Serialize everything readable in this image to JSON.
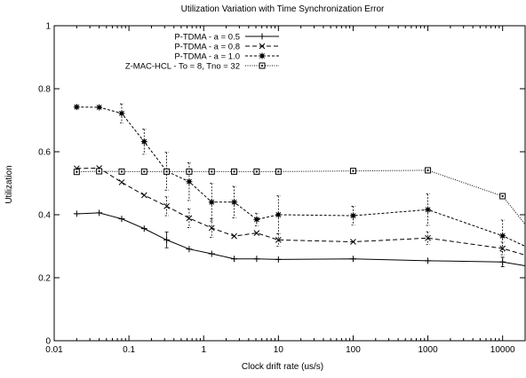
{
  "chart_data": {
    "type": "line",
    "title": "Utilization Variation with Time Synchronization Error",
    "xlabel": "Clock drift rate (us/s)",
    "ylabel": "Utilization",
    "xscale": "log",
    "xlim": [
      0.01,
      20000
    ],
    "ylim": [
      0,
      1
    ],
    "x_ticks": [
      {
        "value": 0.01,
        "label": "0.01"
      },
      {
        "value": 0.1,
        "label": "0.1"
      },
      {
        "value": 1,
        "label": "1"
      },
      {
        "value": 10,
        "label": "10"
      },
      {
        "value": 100,
        "label": "100"
      },
      {
        "value": 1000,
        "label": "1000"
      },
      {
        "value": 10000,
        "label": "10000"
      }
    ],
    "y_ticks": [
      {
        "value": 0,
        "label": "0"
      },
      {
        "value": 0.2,
        "label": "0.2"
      },
      {
        "value": 0.4,
        "label": "0.4"
      },
      {
        "value": 0.6,
        "label": "0.6"
      },
      {
        "value": 0.8,
        "label": "0.8"
      },
      {
        "value": 1,
        "label": "1"
      }
    ],
    "grid": false,
    "legend_position": "top-center",
    "series": [
      {
        "name": "P-TDMA - a = 0.5",
        "marker": "plus",
        "dash": "solid",
        "points": [
          [
            0.02,
            0.403
          ],
          [
            0.04,
            0.406
          ],
          [
            0.08,
            0.387
          ],
          [
            0.16,
            0.356
          ],
          [
            0.32,
            0.32
          ],
          [
            0.64,
            0.291
          ],
          [
            1.28,
            0.276
          ],
          [
            2.56,
            0.26
          ],
          [
            5.12,
            0.26
          ],
          [
            10,
            0.258
          ],
          [
            100,
            0.26
          ],
          [
            1000,
            0.254
          ],
          [
            10000,
            0.25
          ],
          [
            20000,
            0.238
          ]
        ],
        "errors": [
          [
            0.32,
            0.025
          ],
          [
            10000,
            0.015
          ]
        ]
      },
      {
        "name": "P-TDMA - a = 0.8",
        "marker": "x",
        "dash": "dashed",
        "points": [
          [
            0.02,
            0.547
          ],
          [
            0.04,
            0.548
          ],
          [
            0.08,
            0.503
          ],
          [
            0.16,
            0.462
          ],
          [
            0.32,
            0.427
          ],
          [
            0.64,
            0.389
          ],
          [
            1.28,
            0.358
          ],
          [
            2.56,
            0.332
          ],
          [
            5.12,
            0.342
          ],
          [
            10,
            0.32
          ],
          [
            100,
            0.314
          ],
          [
            1000,
            0.326
          ],
          [
            10000,
            0.293
          ],
          [
            20000,
            0.272
          ]
        ],
        "errors": [
          [
            0.32,
            0.03
          ],
          [
            0.64,
            0.03
          ],
          [
            1.28,
            0.03
          ],
          [
            10,
            0.02
          ],
          [
            1000,
            0.02
          ],
          [
            10000,
            0.02
          ]
        ]
      },
      {
        "name": "P-TDMA - a = 1.0",
        "marker": "star",
        "dash": "short-dashed",
        "points": [
          [
            0.02,
            0.742
          ],
          [
            0.04,
            0.741
          ],
          [
            0.08,
            0.722
          ],
          [
            0.16,
            0.632
          ],
          [
            0.32,
            0.538
          ],
          [
            0.64,
            0.505
          ],
          [
            1.28,
            0.44
          ],
          [
            2.56,
            0.44
          ],
          [
            5.12,
            0.385
          ],
          [
            10,
            0.4
          ],
          [
            100,
            0.397
          ],
          [
            1000,
            0.416
          ],
          [
            10000,
            0.333
          ],
          [
            20000,
            0.3
          ]
        ],
        "errors": [
          [
            0.08,
            0.03
          ],
          [
            0.16,
            0.04
          ],
          [
            0.32,
            0.06
          ],
          [
            0.64,
            0.06
          ],
          [
            1.28,
            0.06
          ],
          [
            2.56,
            0.05
          ],
          [
            5.12,
            0.02
          ],
          [
            10,
            0.06
          ],
          [
            100,
            0.03
          ],
          [
            1000,
            0.05
          ],
          [
            10000,
            0.05
          ]
        ]
      },
      {
        "name": "Z-MAC-HCL - To = 8, Tno = 32",
        "marker": "square",
        "dash": "dotted",
        "points": [
          [
            0.02,
            0.536
          ],
          [
            0.04,
            0.538
          ],
          [
            0.08,
            0.537
          ],
          [
            0.16,
            0.537
          ],
          [
            0.32,
            0.537
          ],
          [
            0.64,
            0.537
          ],
          [
            1.28,
            0.537
          ],
          [
            2.56,
            0.537
          ],
          [
            5.12,
            0.537
          ],
          [
            10,
            0.537
          ],
          [
            100,
            0.539
          ],
          [
            1000,
            0.541
          ],
          [
            10000,
            0.459
          ],
          [
            20000,
            0.37
          ]
        ],
        "errors": []
      }
    ]
  }
}
